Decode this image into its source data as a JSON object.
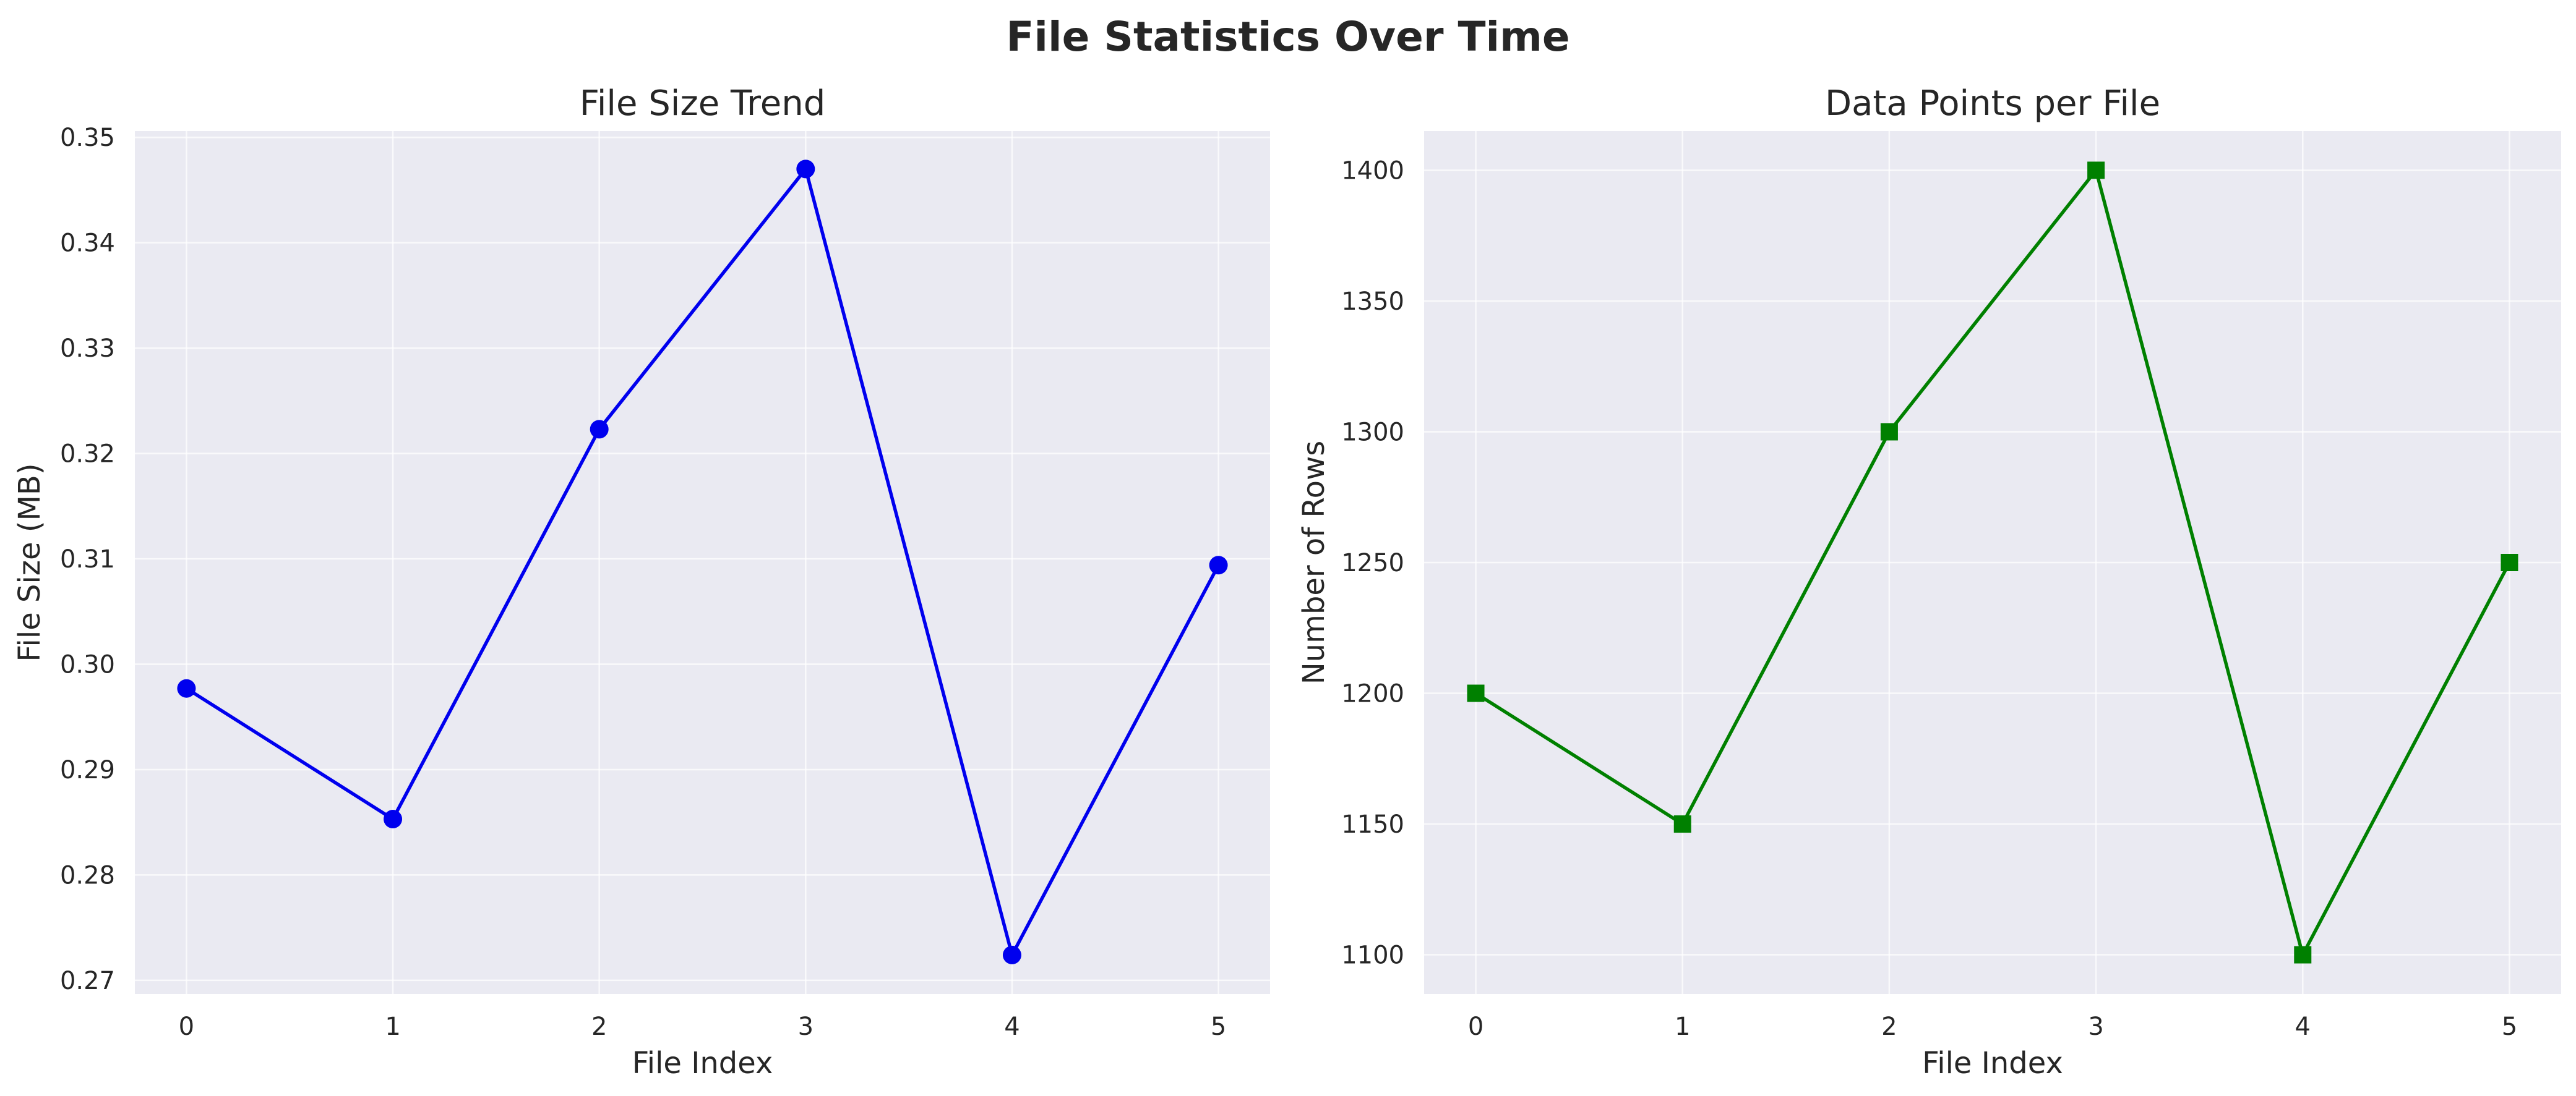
{
  "figure": {
    "title": "File Statistics Over Time"
  },
  "chart_data": [
    {
      "type": "line",
      "title": "File Size Trend",
      "xlabel": "File Index",
      "ylabel": "File Size (MB)",
      "x": [
        0,
        1,
        2,
        3,
        4,
        5
      ],
      "xticks": [
        0,
        1,
        2,
        3,
        4,
        5
      ],
      "yticks": [
        0.27,
        0.28,
        0.29,
        0.3,
        0.31,
        0.32,
        0.33,
        0.34,
        0.35
      ],
      "ytick_labels": [
        "0.27",
        "0.28",
        "0.29",
        "0.30",
        "0.31",
        "0.32",
        "0.33",
        "0.34",
        "0.35"
      ],
      "xlim": [
        -0.25,
        5.25
      ],
      "ylim": [
        0.2687,
        0.3506
      ],
      "grid": true,
      "series": [
        {
          "values": [
            0.2977,
            0.2853,
            0.3223,
            0.347,
            0.2724,
            0.3094
          ],
          "color": "#0000ee",
          "marker": "circle"
        }
      ]
    },
    {
      "type": "line",
      "title": "Data Points per File",
      "xlabel": "File Index",
      "ylabel": "Number of Rows",
      "x": [
        0,
        1,
        2,
        3,
        4,
        5
      ],
      "xticks": [
        0,
        1,
        2,
        3,
        4,
        5
      ],
      "yticks": [
        1100,
        1150,
        1200,
        1250,
        1300,
        1350,
        1400
      ],
      "ytick_labels": [
        "1100",
        "1150",
        "1200",
        "1250",
        "1300",
        "1350",
        "1400"
      ],
      "xlim": [
        -0.25,
        5.25
      ],
      "ylim": [
        1085,
        1415
      ],
      "grid": true,
      "series": [
        {
          "values": [
            1200,
            1150,
            1300,
            1400,
            1100,
            1250
          ],
          "color": "#008000",
          "marker": "square"
        }
      ]
    }
  ]
}
